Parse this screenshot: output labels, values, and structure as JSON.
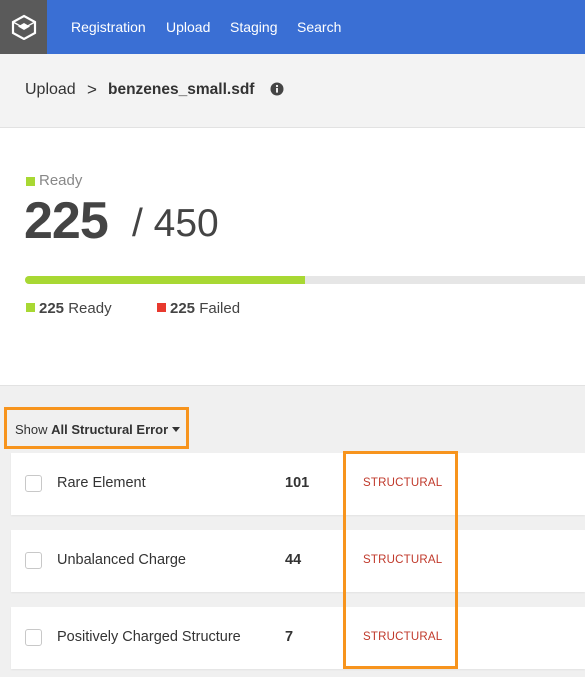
{
  "nav": {
    "logo_icon": "cube-logo-icon",
    "items": [
      "Registration",
      "Upload",
      "Staging",
      "Search"
    ]
  },
  "breadcrumb": {
    "root": "Upload",
    "separator": ">",
    "file": "benzenes_small.sdf",
    "info_icon": "info-circle-icon"
  },
  "status": {
    "label": "Ready",
    "ready_count": "225",
    "total": "/ 450",
    "progress_percent": 50,
    "legend": [
      {
        "count": "225",
        "label": "Ready",
        "color": "#a8d833"
      },
      {
        "count": "225",
        "label": "Failed",
        "color": "#e8392e"
      }
    ]
  },
  "filter": {
    "prefix": "Show",
    "value": "All Structural Error"
  },
  "errors": [
    {
      "name": "Rare Element",
      "count": "101",
      "type": "STRUCTURAL"
    },
    {
      "name": "Unbalanced Charge",
      "count": "44",
      "type": "STRUCTURAL"
    },
    {
      "name": "Positively Charged Structure",
      "count": "7",
      "type": "STRUCTURAL"
    }
  ],
  "colors": {
    "nav_bg": "#3a6fd4",
    "ready": "#a8d833",
    "failed": "#e8392e",
    "structural": "#c0392b",
    "highlight": "#f7941d"
  }
}
